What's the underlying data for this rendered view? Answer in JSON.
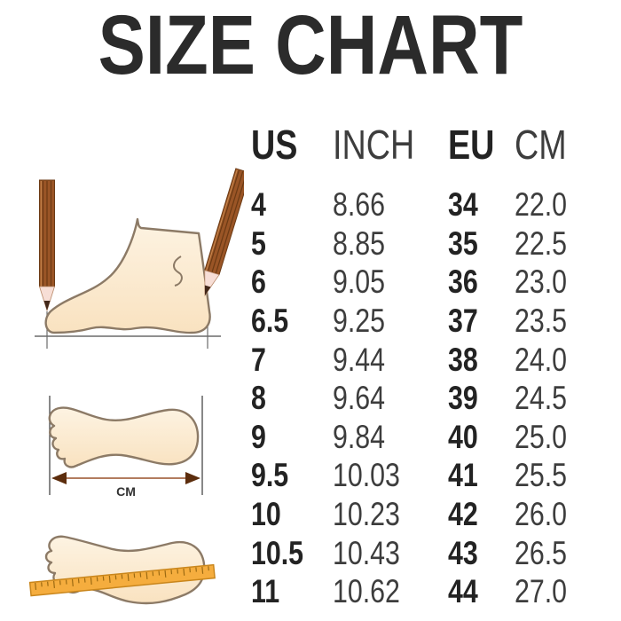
{
  "title": "SIZE CHART",
  "chart_data": {
    "type": "table",
    "title": "SIZE CHART",
    "columns": [
      "US",
      "INCH",
      "EU",
      "CM"
    ],
    "rows": [
      [
        "4",
        "8.66",
        "34",
        "22.0"
      ],
      [
        "5",
        "8.85",
        "35",
        "22.5"
      ],
      [
        "6",
        "9.05",
        "36",
        "23.0"
      ],
      [
        "6.5",
        "9.25",
        "37",
        "23.5"
      ],
      [
        "7",
        "9.44",
        "38",
        "24.0"
      ],
      [
        "8",
        "9.64",
        "39",
        "24.5"
      ],
      [
        "9",
        "9.84",
        "40",
        "25.0"
      ],
      [
        "9.5",
        "10.03",
        "41",
        "25.5"
      ],
      [
        "10",
        "10.23",
        "42",
        "26.0"
      ],
      [
        "10.5",
        "10.43",
        "43",
        "26.5"
      ],
      [
        "11",
        "10.62",
        "44",
        "27.0"
      ]
    ]
  },
  "illustrations": {
    "foot_measure_label": "CM",
    "items": [
      "foot-side-view-with-pencils",
      "footprint-with-measure-arrow",
      "footprint-with-ruler"
    ]
  },
  "colors": {
    "title_text": "#2b2b2b",
    "bold_column_text": "#232323",
    "regular_column_text": "#3d3d3d",
    "foot_fill": "#fbe7cb",
    "foot_stroke": "#8c7a66",
    "pencil_body": "#9a5526",
    "pencil_stripe": "#6b3a14",
    "arrow_head": "#5c2d0d",
    "ruler_fill": "#f5ad3e"
  }
}
